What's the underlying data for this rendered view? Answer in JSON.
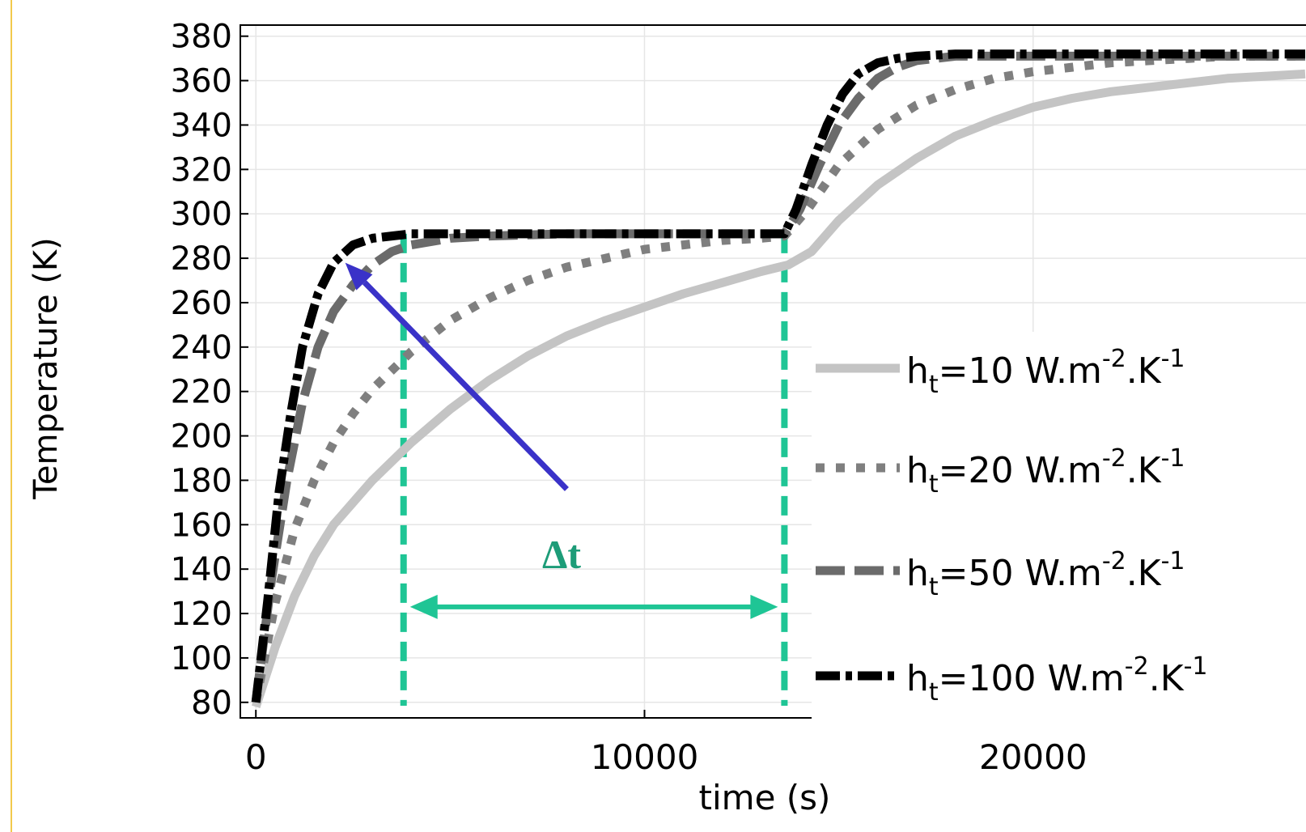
{
  "chart_data": {
    "type": "line",
    "xlabel": "time (s)",
    "ylabel": "Temperature (K)",
    "xlim": [
      -400,
      27500
    ],
    "ylim": [
      73,
      385
    ],
    "x_ticks": [
      0,
      10000,
      20000
    ],
    "x_tick_labels": [
      "0",
      "10000",
      "20000"
    ],
    "y_ticks": [
      80,
      100,
      120,
      140,
      160,
      180,
      200,
      220,
      240,
      260,
      280,
      300,
      320,
      340,
      360,
      380
    ],
    "y_tick_labels": [
      "80",
      "100",
      "120",
      "140",
      "160",
      "180",
      "200",
      "220",
      "240",
      "260",
      "280",
      "300",
      "320",
      "340",
      "360",
      "380"
    ],
    "grid": true,
    "legend_position": "right",
    "series": [
      {
        "name": "ht=10 W.m-2.K-1",
        "label_parts": {
          "base": "h",
          "sub": "t",
          "a": "=10 W.m",
          "sup1": "-2",
          "b": ".K",
          "sup2": "-1"
        },
        "color": "#c4c4c4",
        "style": "solid",
        "x": [
          0,
          500,
          1000,
          1500,
          2000,
          3000,
          4000,
          5000,
          6000,
          7000,
          8000,
          9000,
          10000,
          11000,
          12000,
          13000,
          13700,
          14300,
          15000,
          16000,
          17000,
          18000,
          19000,
          20000,
          21000,
          22000,
          23000,
          24000,
          25000,
          26000,
          27000
        ],
        "y": [
          78,
          105,
          128,
          146,
          160,
          180,
          197,
          212,
          225,
          236,
          245,
          252,
          258,
          264,
          269,
          274,
          277,
          283,
          297,
          313,
          325,
          335,
          342,
          348,
          352,
          355,
          357,
          359,
          361,
          362,
          363
        ]
      },
      {
        "name": "ht=20 W.m-2.K-1",
        "label_parts": {
          "base": "h",
          "sub": "t",
          "a": "=20 W.m",
          "sup1": "-2",
          "b": ".K",
          "sup2": "-1"
        },
        "color": "#7f7f7f",
        "style": "dotted",
        "x": [
          0,
          500,
          1000,
          1500,
          2000,
          2500,
          3000,
          4000,
          5000,
          6000,
          7000,
          8000,
          9000,
          10000,
          11000,
          12000,
          13000,
          13600,
          14200,
          15000,
          16000,
          17000,
          18000,
          19000,
          20000,
          21000,
          22000,
          23000,
          24000,
          25000,
          27000
        ],
        "y": [
          80,
          125,
          158,
          180,
          197,
          210,
          221,
          238,
          252,
          262,
          270,
          276,
          280,
          284,
          286,
          288,
          289,
          290,
          302,
          322,
          338,
          349,
          356,
          361,
          364,
          366,
          368,
          369,
          370,
          371,
          371
        ]
      },
      {
        "name": "ht=50 W.m-2.K-1",
        "label_parts": {
          "base": "h",
          "sub": "t",
          "a": "=50 W.m",
          "sup1": "-2",
          "b": ".K",
          "sup2": "-1"
        },
        "color": "#6b6b6b",
        "style": "dashed",
        "x": [
          0,
          400,
          800,
          1200,
          1600,
          2000,
          2500,
          3000,
          3500,
          4000,
          5000,
          6000,
          8000,
          10000,
          12000,
          13600,
          14000,
          14500,
          15000,
          15500,
          16000,
          16500,
          17000,
          18000,
          20000,
          23000,
          27000
        ],
        "y": [
          80,
          135,
          180,
          215,
          240,
          256,
          268,
          277,
          283,
          286,
          289,
          290,
          291,
          291,
          291,
          291,
          302,
          322,
          340,
          352,
          361,
          366,
          369,
          371,
          371,
          371,
          371
        ]
      },
      {
        "name": "ht=100 W.m-2.K-1",
        "label_parts": {
          "base": "h",
          "sub": "t",
          "a": "=100 W.m",
          "sup1": "-2",
          "b": ".K",
          "sup2": "-1"
        },
        "color": "#000000",
        "style": "dashdot",
        "x": [
          0,
          300,
          600,
          900,
          1200,
          1600,
          2000,
          2500,
          3000,
          3500,
          4000,
          6000,
          8000,
          10000,
          12000,
          13600,
          13900,
          14300,
          14700,
          15100,
          15500,
          16000,
          16500,
          17000,
          18000,
          20000,
          27000
        ],
        "y": [
          80,
          125,
          175,
          210,
          240,
          264,
          278,
          286,
          289,
          290,
          291,
          291,
          291,
          291,
          291,
          291,
          302,
          322,
          340,
          354,
          363,
          368,
          370,
          371,
          372,
          372,
          372
        ]
      }
    ],
    "annotations": {
      "delta_label": "Δt",
      "marker_start_x": 3800,
      "marker_end_x": 13600,
      "arrow_from": {
        "x": 8000,
        "y": 176
      },
      "arrow_to": {
        "x": 2300,
        "y": 278
      },
      "span_y": 123,
      "delta_color": "#1fc595",
      "arrow_color": "#3a32c8"
    }
  }
}
